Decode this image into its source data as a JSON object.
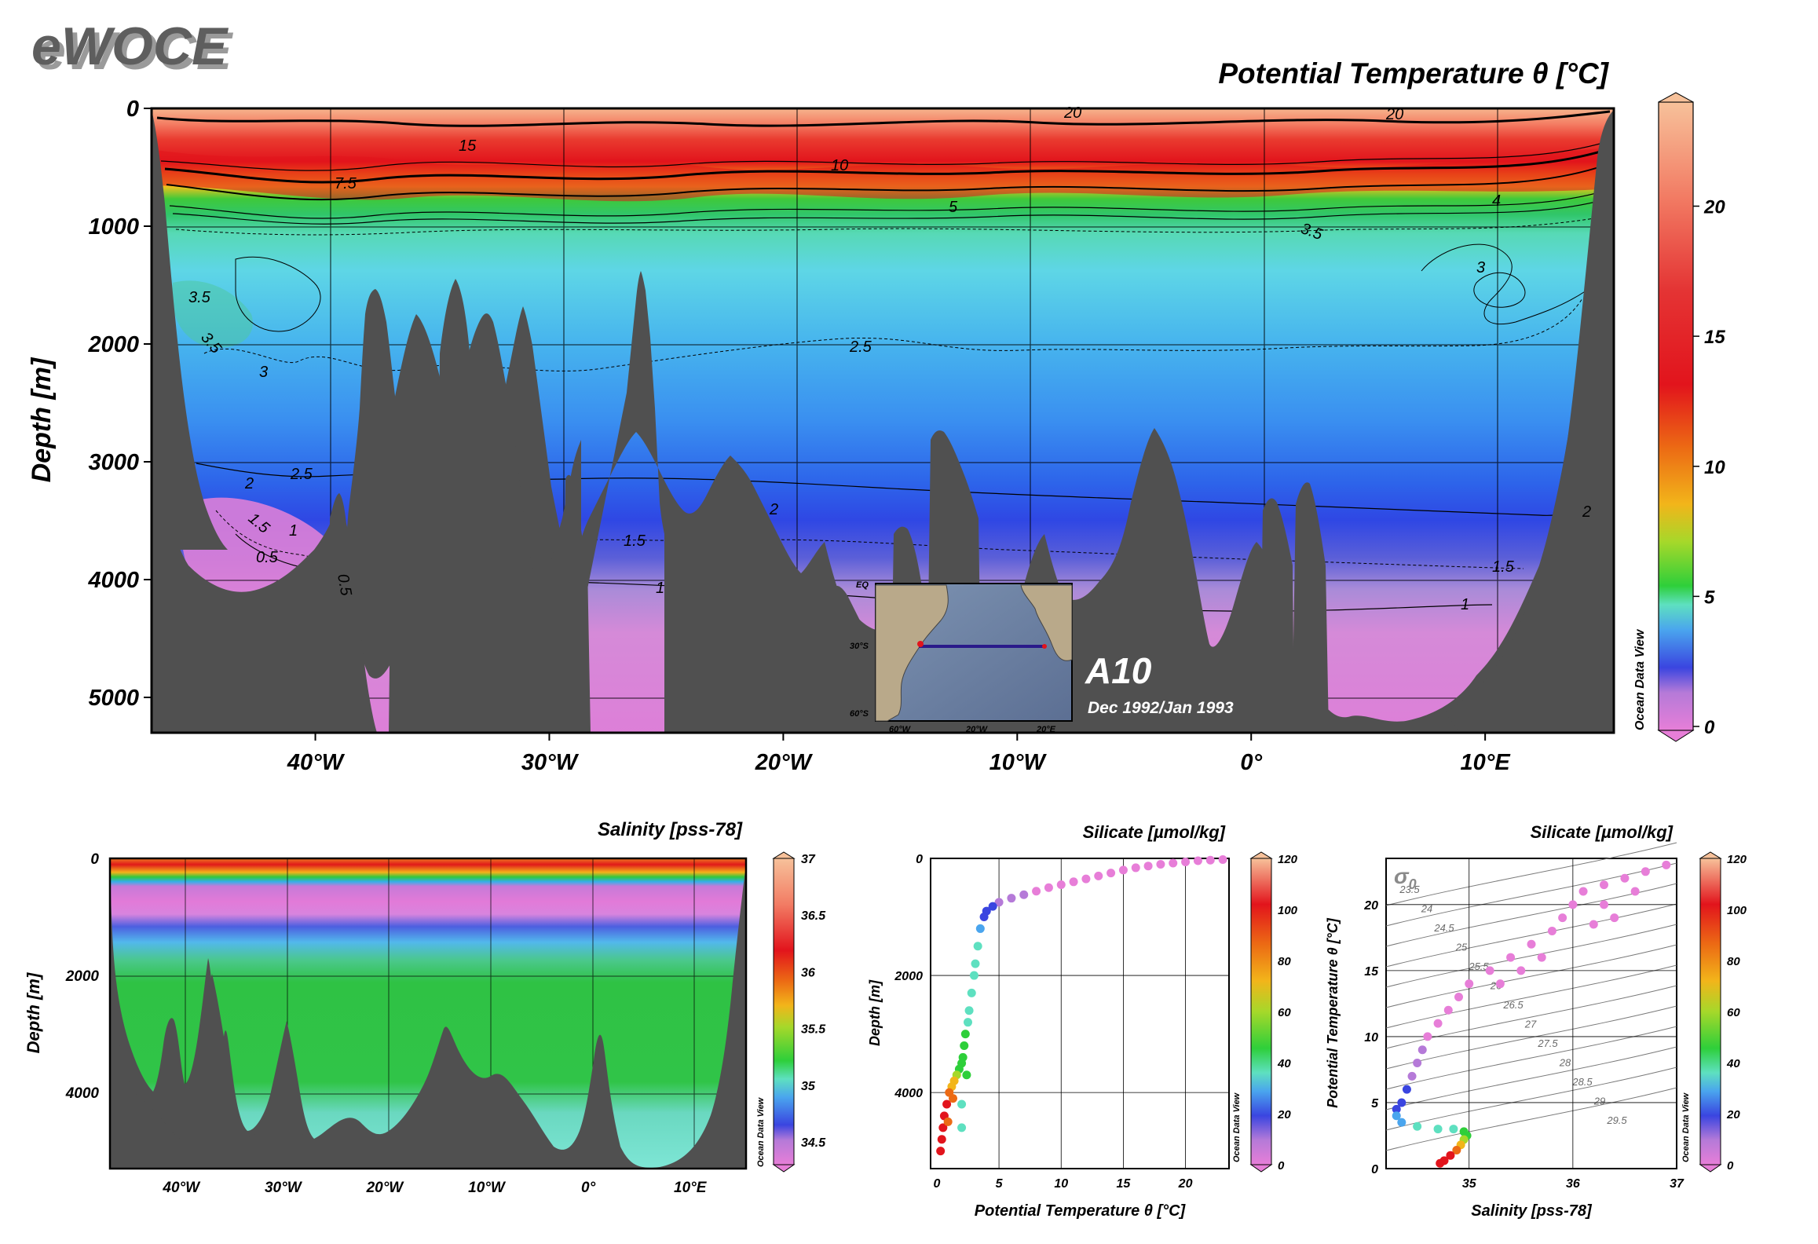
{
  "brand": "eWOCE",
  "section": {
    "id": "A10",
    "dates": "Dec 1992/Jan 1993"
  },
  "chart_data": [
    {
      "type": "heatmap",
      "title": "Potential Temperature θ [°C]",
      "ylabel": "Depth [m]",
      "xlim": [
        -47,
        15.5
      ],
      "ylim": [
        5300,
        0
      ],
      "x_ticks": [
        {
          "value": -40,
          "label": "40°W"
        },
        {
          "value": -30,
          "label": "30°W"
        },
        {
          "value": -20,
          "label": "20°W"
        },
        {
          "value": -10,
          "label": "10°W"
        },
        {
          "value": 0,
          "label": "0°"
        },
        {
          "value": 10,
          "label": "10°E"
        }
      ],
      "y_ticks": [
        0,
        1000,
        2000,
        3000,
        4000,
        5000
      ],
      "colorbar": {
        "min": 0,
        "max": 24,
        "ticks": [
          0,
          5,
          10,
          15,
          20
        ],
        "label": "Ocean Data View"
      },
      "contours": [
        {
          "value": 20,
          "depth": 70,
          "labels": [
            "20",
            "20"
          ]
        },
        {
          "value": 15,
          "depth": 280,
          "labels": [
            "15"
          ]
        },
        {
          "value": 10,
          "depth": 460,
          "labels": [
            "10"
          ]
        },
        {
          "value": 7.5,
          "depth": 590,
          "labels": [
            "7.5"
          ]
        },
        {
          "value": 5,
          "depth": 790,
          "labels": [
            "5"
          ]
        },
        {
          "value": 4,
          "depth": 910,
          "labels": [
            "4"
          ]
        },
        {
          "value": 3.5,
          "depth": 1030,
          "labels": [
            "3.5",
            "3.5",
            "3.5"
          ]
        },
        {
          "value": 3,
          "depth": 1250,
          "labels": [
            "3",
            "3"
          ]
        },
        {
          "value": 2.5,
          "depth": 2150,
          "labels": [
            "2.5",
            "2.5"
          ]
        },
        {
          "value": 2,
          "depth": 3400,
          "labels": [
            "2",
            "2",
            "2"
          ]
        },
        {
          "value": 1.5,
          "depth": 3750,
          "labels": [
            "1.5",
            "1.5",
            "1.5"
          ]
        },
        {
          "value": 1,
          "depth": 4150,
          "labels": [
            "1",
            "1",
            "1"
          ]
        },
        {
          "value": 0.5,
          "depth": 3900,
          "labels": [
            "0.5",
            "0.5"
          ]
        }
      ]
    },
    {
      "type": "heatmap",
      "title": "Salinity [pss-78]",
      "ylabel": "Depth [m]",
      "xlim": [
        -47,
        15.5
      ],
      "ylim": [
        5300,
        0
      ],
      "x_ticks": [
        {
          "value": -40,
          "label": "40°W"
        },
        {
          "value": -30,
          "label": "30°W"
        },
        {
          "value": -20,
          "label": "20°W"
        },
        {
          "value": -10,
          "label": "10°W"
        },
        {
          "value": 0,
          "label": "0°"
        },
        {
          "value": 10,
          "label": "10°E"
        }
      ],
      "y_ticks": [
        0,
        2000,
        4000
      ],
      "colorbar": {
        "min": 34.3,
        "max": 37,
        "ticks": [
          34.5,
          35,
          35.5,
          36,
          36.5,
          37
        ],
        "label": "Ocean Data View"
      }
    },
    {
      "type": "scatter",
      "title": "Silicate [µmol/kg]",
      "xlabel": "Potential Temperature θ [°C]",
      "ylabel": "Depth [m]",
      "xlim": [
        -0.5,
        23.5
      ],
      "ylim": [
        5300,
        0
      ],
      "x_ticks": [
        0,
        5,
        10,
        15,
        20
      ],
      "y_ticks": [
        0,
        2000,
        4000
      ],
      "colorbar": {
        "min": 0,
        "max": 120,
        "ticks": [
          0,
          20,
          40,
          60,
          80,
          100,
          120
        ],
        "label": "Ocean Data View"
      },
      "points": [
        [
          23,
          20,
          2
        ],
        [
          22,
          30,
          3
        ],
        [
          21,
          40,
          2
        ],
        [
          20,
          60,
          3
        ],
        [
          19,
          80,
          3
        ],
        [
          18,
          100,
          4
        ],
        [
          17,
          130,
          3
        ],
        [
          16,
          160,
          4
        ],
        [
          15,
          200,
          4
        ],
        [
          14,
          250,
          5
        ],
        [
          13,
          300,
          5
        ],
        [
          12,
          350,
          6
        ],
        [
          11,
          400,
          7
        ],
        [
          10,
          450,
          8
        ],
        [
          9,
          500,
          9
        ],
        [
          8,
          560,
          10
        ],
        [
          7,
          620,
          12
        ],
        [
          6,
          680,
          14
        ],
        [
          5,
          750,
          18
        ],
        [
          4.5,
          820,
          22
        ],
        [
          4,
          900,
          26
        ],
        [
          3.8,
          1000,
          30
        ],
        [
          3.5,
          1200,
          34
        ],
        [
          3.3,
          1500,
          38
        ],
        [
          3.1,
          1800,
          40
        ],
        [
          3.0,
          2000,
          42
        ],
        [
          2.8,
          2300,
          44
        ],
        [
          2.6,
          2600,
          45
        ],
        [
          2.5,
          2800,
          46
        ],
        [
          2.3,
          3000,
          48
        ],
        [
          2.2,
          3200,
          50
        ],
        [
          2.1,
          3400,
          52
        ],
        [
          2.0,
          3500,
          60
        ],
        [
          1.8,
          3600,
          55
        ],
        [
          1.6,
          3700,
          65
        ],
        [
          1.4,
          3800,
          75
        ],
        [
          1.2,
          3900,
          85
        ],
        [
          1.0,
          4000,
          95
        ],
        [
          0.8,
          4200,
          105
        ],
        [
          0.6,
          4400,
          110
        ],
        [
          0.5,
          4600,
          115
        ],
        [
          0.4,
          4800,
          118
        ],
        [
          0.3,
          5000,
          120
        ],
        [
          0.9,
          4500,
          100
        ],
        [
          1.3,
          4100,
          90
        ],
        [
          2.4,
          3700,
          50
        ],
        [
          2.0,
          4200,
          45
        ],
        [
          2.0,
          4600,
          40
        ]
      ]
    },
    {
      "type": "scatter",
      "title": "Silicate [µmol/kg]",
      "xlabel": "Salinity [pss-78]",
      "ylabel": "Potential Temperature θ [°C]",
      "xlim": [
        34.2,
        37
      ],
      "ylim": [
        0,
        23.5
      ],
      "x_ticks": [
        35,
        36,
        37
      ],
      "y_ticks": [
        0,
        5,
        10,
        15,
        20
      ],
      "sigma_label": "σ",
      "sigma_sub": "0",
      "isopycnals": [
        "23.5",
        "24",
        "24.5",
        "25",
        "25.5",
        "26",
        "26.5",
        "27",
        "27.5",
        "28",
        "28.5",
        "29",
        "29.5"
      ],
      "colorbar": {
        "min": 0,
        "max": 120,
        "ticks": [
          0,
          20,
          40,
          60,
          80,
          100,
          120
        ],
        "label": "Ocean Data View"
      },
      "points": [
        [
          36.9,
          23,
          2
        ],
        [
          36.7,
          22.5,
          2
        ],
        [
          36.5,
          22,
          3
        ],
        [
          36.3,
          21.5,
          2
        ],
        [
          36.1,
          21,
          3
        ],
        [
          36.0,
          20,
          3
        ],
        [
          35.9,
          19,
          3
        ],
        [
          35.8,
          18,
          4
        ],
        [
          35.6,
          17,
          4
        ],
        [
          35.4,
          16,
          5
        ],
        [
          35.2,
          15,
          5
        ],
        [
          35.0,
          14,
          6
        ],
        [
          34.9,
          13,
          7
        ],
        [
          34.8,
          12,
          8
        ],
        [
          34.7,
          11,
          9
        ],
        [
          34.6,
          10,
          10
        ],
        [
          34.55,
          9,
          12
        ],
        [
          34.5,
          8,
          14
        ],
        [
          34.45,
          7,
          18
        ],
        [
          34.4,
          6,
          22
        ],
        [
          34.35,
          5,
          26
        ],
        [
          34.3,
          4.5,
          28
        ],
        [
          34.3,
          4,
          32
        ],
        [
          34.35,
          3.5,
          36
        ],
        [
          34.5,
          3.2,
          40
        ],
        [
          34.7,
          3.0,
          42
        ],
        [
          34.85,
          3.0,
          46
        ],
        [
          34.95,
          2.8,
          48
        ],
        [
          34.98,
          2.5,
          55
        ],
        [
          34.95,
          2.2,
          65
        ],
        [
          34.92,
          1.8,
          75
        ],
        [
          34.88,
          1.4,
          90
        ],
        [
          34.82,
          1.0,
          105
        ],
        [
          34.76,
          0.6,
          115
        ],
        [
          34.72,
          0.4,
          120
        ],
        [
          36.4,
          19,
          2
        ],
        [
          36.2,
          18.5,
          3
        ],
        [
          36.6,
          21,
          2
        ],
        [
          36.3,
          20,
          2
        ],
        [
          35.7,
          16,
          4
        ],
        [
          35.5,
          15,
          5
        ],
        [
          35.3,
          14,
          5
        ]
      ]
    }
  ],
  "inset_map": {
    "lat_ticks": [
      "EQ",
      "30°S",
      "60°S"
    ],
    "lon_ticks": [
      "60°W",
      "20°W",
      "20°E"
    ]
  }
}
